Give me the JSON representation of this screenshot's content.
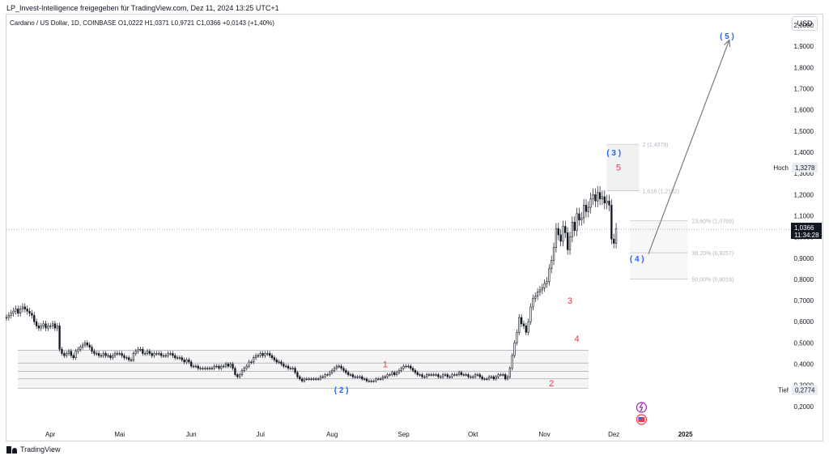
{
  "header": {
    "attribution": "LP_Invest-Intelligence freigegeben für TradingView.com, Dez 11, 2024 13:25 UTC+1",
    "legend": "Cardano / US Dollar, 1D, COINBASE  O1,0222  H1,0371  L0,9721  C1,0366  +0,0143 (+1,40%)",
    "currency_button": "USD"
  },
  "footer": {
    "brand": "TradingView"
  },
  "colors": {
    "candle": "#131722",
    "wave_red": "#f23645",
    "wave_blue": "#2962ff",
    "fib_text": "#b2b5be",
    "arrow": "#787b86",
    "price_tag_bg": "#131722",
    "zone_fill": "#f0f1f3"
  },
  "chart_data": {
    "type": "candlestick",
    "symbol": "Cardano / US Dollar",
    "interval": "1D",
    "exchange": "COINBASE",
    "ohlc_last": {
      "open": 1.0222,
      "high": 1.0371,
      "low": 0.9721,
      "close": 1.0366,
      "change": 0.0143,
      "change_pct": "+1,40%"
    },
    "ylim": [
      0.1,
      2.05
    ],
    "y_ticks": [
      "2,0000",
      "1,9000",
      "1,8000",
      "1,7000",
      "1,6000",
      "1,5000",
      "1,4000",
      "1,3000",
      "1,2000",
      "1,1000",
      "1,0000",
      "0,9000",
      "0,8000",
      "0,7000",
      "0,6000",
      "0,5000",
      "0,4000",
      "0,3000",
      "0,2000"
    ],
    "x_ticks": [
      "Apr",
      "Mai",
      "Jun",
      "Jul",
      "Aug",
      "Sep",
      "Okt",
      "Nov",
      "Dez",
      "2025"
    ],
    "x_tick_values": [
      "2024-04-01",
      "2024-05-01",
      "2024-06-01",
      "2024-07-01",
      "2024-08-01",
      "2024-09-01",
      "2024-10-01",
      "2024-11-01",
      "2024-12-01",
      "2025-01-01"
    ],
    "xlim": [
      "2024-03-13",
      "2025-02-15"
    ],
    "series_dates_start": "2024-03-13",
    "closes": [
      0.62,
      0.63,
      0.64,
      0.65,
      0.66,
      0.64,
      0.66,
      0.67,
      0.66,
      0.65,
      0.64,
      0.63,
      0.6,
      0.58,
      0.57,
      0.58,
      0.59,
      0.57,
      0.58,
      0.58,
      0.59,
      0.57,
      0.58,
      0.47,
      0.45,
      0.44,
      0.45,
      0.46,
      0.44,
      0.43,
      0.46,
      0.47,
      0.48,
      0.49,
      0.5,
      0.49,
      0.48,
      0.46,
      0.45,
      0.45,
      0.44,
      0.44,
      0.45,
      0.44,
      0.44,
      0.43,
      0.44,
      0.45,
      0.45,
      0.45,
      0.44,
      0.43,
      0.43,
      0.42,
      0.42,
      0.45,
      0.46,
      0.47,
      0.47,
      0.45,
      0.45,
      0.46,
      0.45,
      0.44,
      0.45,
      0.45,
      0.45,
      0.44,
      0.44,
      0.44,
      0.45,
      0.45,
      0.44,
      0.43,
      0.43,
      0.43,
      0.42,
      0.41,
      0.42,
      0.41,
      0.39,
      0.39,
      0.39,
      0.38,
      0.38,
      0.38,
      0.38,
      0.38,
      0.38,
      0.38,
      0.39,
      0.39,
      0.38,
      0.39,
      0.39,
      0.4,
      0.39,
      0.4,
      0.38,
      0.35,
      0.34,
      0.35,
      0.37,
      0.38,
      0.39,
      0.41,
      0.41,
      0.43,
      0.44,
      0.44,
      0.45,
      0.44,
      0.45,
      0.45,
      0.44,
      0.43,
      0.42,
      0.41,
      0.41,
      0.4,
      0.39,
      0.39,
      0.38,
      0.38,
      0.38,
      0.36,
      0.34,
      0.33,
      0.32,
      0.33,
      0.33,
      0.33,
      0.33,
      0.33,
      0.33,
      0.33,
      0.34,
      0.34,
      0.35,
      0.35,
      0.36,
      0.37,
      0.38,
      0.39,
      0.39,
      0.38,
      0.37,
      0.36,
      0.35,
      0.35,
      0.34,
      0.34,
      0.34,
      0.34,
      0.33,
      0.33,
      0.32,
      0.32,
      0.32,
      0.32,
      0.33,
      0.33,
      0.33,
      0.34,
      0.34,
      0.35,
      0.35,
      0.36,
      0.35,
      0.36,
      0.37,
      0.38,
      0.39,
      0.39,
      0.39,
      0.38,
      0.37,
      0.36,
      0.35,
      0.35,
      0.34,
      0.34,
      0.35,
      0.35,
      0.35,
      0.35,
      0.35,
      0.34,
      0.34,
      0.35,
      0.35,
      0.34,
      0.34,
      0.35,
      0.35,
      0.35,
      0.36,
      0.35,
      0.35,
      0.35,
      0.34,
      0.34,
      0.34,
      0.35,
      0.35,
      0.34,
      0.33,
      0.33,
      0.33,
      0.34,
      0.34,
      0.33,
      0.34,
      0.35,
      0.35,
      0.35,
      0.33,
      0.34,
      0.38,
      0.44,
      0.5,
      0.55,
      0.62,
      0.59,
      0.58,
      0.55,
      0.6,
      0.67,
      0.71,
      0.72,
      0.74,
      0.75,
      0.76,
      0.78,
      0.79,
      0.85,
      0.89,
      0.95,
      1.04,
      1.01,
      0.98,
      1.05,
      1.02,
      0.94,
      1.0,
      1.07,
      1.03,
      1.11,
      1.08,
      1.09,
      1.15,
      1.12,
      1.14,
      1.18,
      1.2,
      1.17,
      1.21,
      1.18,
      1.19,
      1.16,
      1.17,
      1.15,
      0.99,
      0.97,
      1.04
    ],
    "waves": [
      {
        "label": "1",
        "color": "red",
        "date": "2024-08-24",
        "price": 0.4
      },
      {
        "label": "( 2 )",
        "color": "blue",
        "date": "2024-08-05",
        "price": 0.28
      },
      {
        "label": "2",
        "color": "red",
        "date": "2024-11-04",
        "price": 0.31
      },
      {
        "label": "3",
        "color": "red",
        "date": "2024-11-12",
        "price": 0.7
      },
      {
        "label": "4",
        "color": "red",
        "date": "2024-11-15",
        "price": 0.52
      },
      {
        "label": "5",
        "color": "red",
        "date": "2024-12-03",
        "price": 1.33
      },
      {
        "label": "( 3 )",
        "color": "blue",
        "date": "2024-12-01",
        "price": 1.4
      },
      {
        "label": "( 4 )",
        "color": "blue",
        "date": "2024-12-11",
        "price": 0.9
      },
      {
        "label": "( 5 )",
        "color": "blue",
        "date": "2025-01-19",
        "price": 1.95
      }
    ],
    "fib_ext_labels": [
      {
        "text": "2 (1,4378)",
        "price": 1.4378
      },
      {
        "text": "1,618 (1,2182)",
        "price": 1.2182
      }
    ],
    "fib_retr_labels": [
      {
        "text": "23,60% (1,0769)",
        "price": 1.0769
      },
      {
        "text": "38,20% (0,9257)",
        "price": 0.9257
      },
      {
        "text": "50,00% (0,8019)",
        "price": 0.8019
      }
    ],
    "horizontal_levels": [
      0.465,
      0.405,
      0.365,
      0.33,
      0.285
    ],
    "markers": {
      "high_label": "Hoch",
      "high_value": "1,3278",
      "low_label": "Tief",
      "low_value": "0,2774",
      "last_price": "1,0366",
      "countdown": "11:34:28"
    },
    "projection": {
      "from_date": "2024-12-16",
      "from_price": 0.92,
      "to_date": "2025-01-20",
      "to_price": 1.93
    }
  }
}
